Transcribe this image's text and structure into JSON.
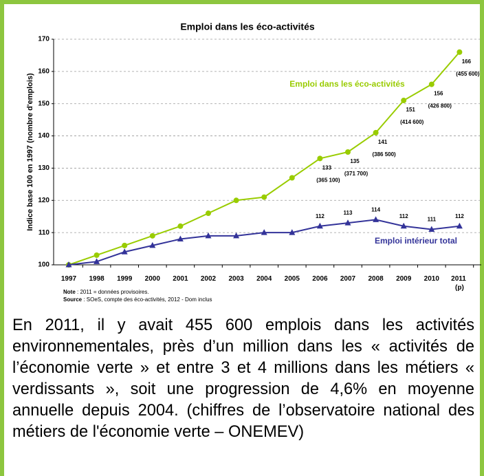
{
  "chart_data": {
    "type": "line",
    "title": "Emploi dans les éco-activités",
    "ylabel": "Indice base 100 en 1997 (nombre d'emplois)",
    "categories": [
      "1997",
      "1998",
      "1999",
      "2000",
      "2001",
      "2002",
      "2003",
      "2004",
      "2005",
      "2006",
      "2007",
      "2008",
      "2009",
      "2010",
      "2011 (p)"
    ],
    "ylim": [
      100,
      170
    ],
    "yticks": [
      100,
      110,
      120,
      130,
      140,
      150,
      160,
      170
    ],
    "grid": true,
    "series": [
      {
        "name": "Emploi dans les éco-activités",
        "color": "#99cc00",
        "marker": "circle",
        "values": [
          100,
          103,
          106,
          109,
          112,
          116,
          120,
          121,
          127,
          133,
          135,
          141,
          151,
          156,
          166
        ],
        "value_labels": [
          null,
          null,
          null,
          null,
          null,
          null,
          null,
          null,
          null,
          "133",
          "135",
          "141",
          "151",
          "156",
          "166"
        ],
        "count_labels": [
          null,
          null,
          null,
          null,
          null,
          null,
          null,
          null,
          null,
          "(365 100)",
          "(371 700)",
          "(386 500)",
          "(414 600)",
          "(426 800)",
          "(455 600)"
        ]
      },
      {
        "name": "Emploi intérieur total",
        "color": "#333399",
        "marker": "triangle",
        "values": [
          100,
          101,
          104,
          106,
          108,
          109,
          109,
          110,
          110,
          112,
          113,
          114,
          112,
          111,
          112
        ],
        "value_labels": [
          null,
          null,
          null,
          null,
          null,
          null,
          null,
          null,
          null,
          "112",
          "113",
          "114",
          "112",
          "111",
          "112"
        ]
      }
    ],
    "note_label": "Note",
    "note_text": " : 2011 = données provisoires.",
    "source_label": "Source",
    "source_text": " : SOeS, compte des éco-activités, 2012 - Dom inclus"
  },
  "paragraph": "En 2011, il y avait 455 600 emplois dans les activités environnementales, près d’un million dans les « activités de l’économie verte » et entre 3 et 4 millions dans les métiers « verdissants », soit une progression de 4,6% en moyenne annuelle depuis 2004. (chiffres de l’observatoire national des métiers de l'économie verte – ONEMEV)"
}
